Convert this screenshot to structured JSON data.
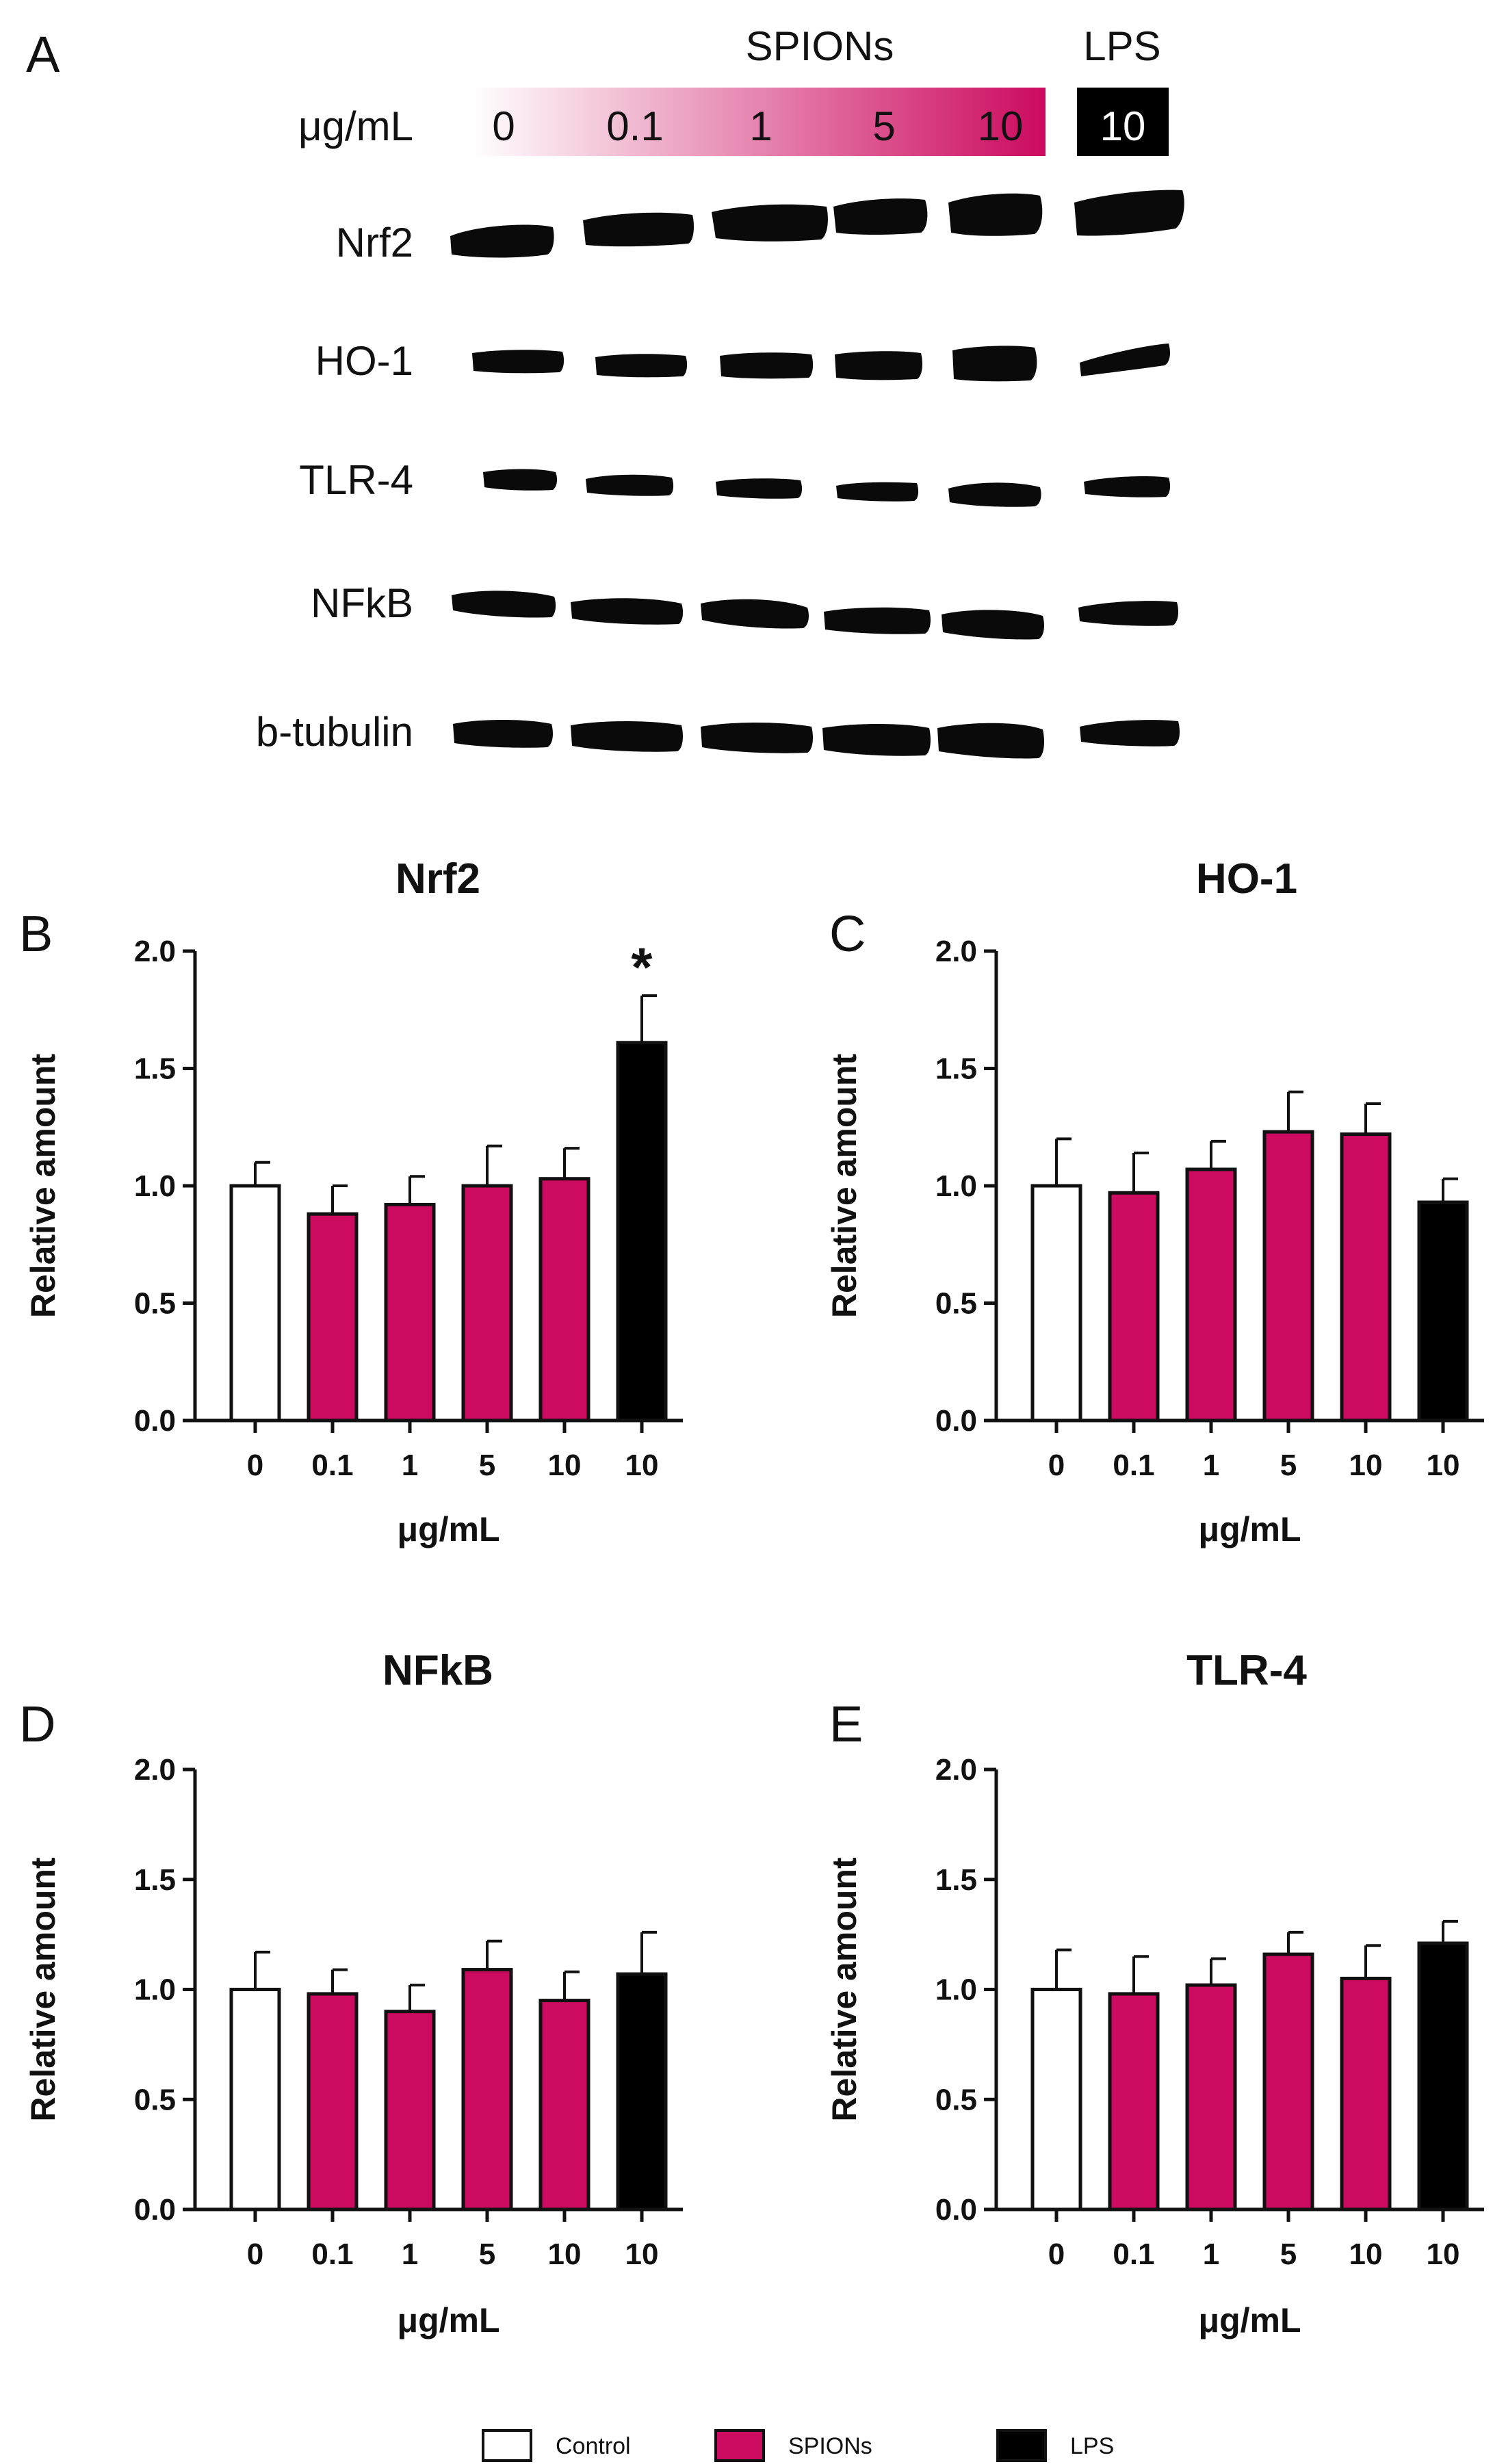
{
  "panel_a": {
    "letter": "A",
    "spions_label": "SPIONs",
    "lps_label": "LPS",
    "unit_label": "μg/mL",
    "spion_doses": [
      "0",
      "0.1",
      "1",
      "5",
      "10"
    ],
    "lps_dose": "10",
    "proteins": [
      "Nrf2",
      "HO-1",
      "TLR-4",
      "NFkB",
      "b-tubulin"
    ],
    "colors": {
      "spions": "#cc0a5f",
      "lps": "#000000"
    }
  },
  "legend": {
    "items": [
      {
        "label": "Control",
        "color": "#ffffff"
      },
      {
        "label": "SPIONs",
        "color": "#cc0a5f"
      },
      {
        "label": "LPS",
        "color": "#000000"
      }
    ]
  },
  "chart_data": [
    {
      "letter": "B",
      "type": "bar",
      "title": "Nrf2",
      "xlabel": "μg/mL",
      "ylabel": "Relative amount",
      "categories": [
        "0",
        "0.1",
        "1",
        "5",
        "10",
        "10"
      ],
      "values": [
        1.0,
        0.88,
        0.92,
        1.0,
        1.03,
        1.61
      ],
      "errors": [
        0.1,
        0.12,
        0.12,
        0.17,
        0.13,
        0.2
      ],
      "groups": [
        "Control",
        "SPIONs",
        "SPIONs",
        "SPIONs",
        "SPIONs",
        "LPS"
      ],
      "annotations": [
        "",
        "",
        "",
        "",
        "",
        "*"
      ],
      "ylim": [
        0,
        2.0
      ],
      "yticks": [
        "0.0",
        "0.5",
        "1.0",
        "1.5",
        "2.0"
      ]
    },
    {
      "letter": "C",
      "type": "bar",
      "title": "HO-1",
      "xlabel": "μg/mL",
      "ylabel": "Relative amount",
      "categories": [
        "0",
        "0.1",
        "1",
        "5",
        "10",
        "10"
      ],
      "values": [
        1.0,
        0.97,
        1.07,
        1.23,
        1.22,
        0.93
      ],
      "errors": [
        0.2,
        0.17,
        0.12,
        0.17,
        0.13,
        0.1
      ],
      "groups": [
        "Control",
        "SPIONs",
        "SPIONs",
        "SPIONs",
        "SPIONs",
        "LPS"
      ],
      "annotations": [
        "",
        "",
        "",
        "",
        "",
        ""
      ],
      "ylim": [
        0,
        2.0
      ],
      "yticks": [
        "0.0",
        "0.5",
        "1.0",
        "1.5",
        "2.0"
      ]
    },
    {
      "letter": "D",
      "type": "bar",
      "title": "NFkB",
      "xlabel": "μg/mL",
      "ylabel": "Relative amount",
      "categories": [
        "0",
        "0.1",
        "1",
        "5",
        "10",
        "10"
      ],
      "values": [
        1.0,
        0.98,
        0.9,
        1.09,
        0.95,
        1.07
      ],
      "errors": [
        0.17,
        0.11,
        0.12,
        0.13,
        0.13,
        0.19
      ],
      "groups": [
        "Control",
        "SPIONs",
        "SPIONs",
        "SPIONs",
        "SPIONs",
        "LPS"
      ],
      "annotations": [
        "",
        "",
        "",
        "",
        "",
        ""
      ],
      "ylim": [
        0,
        2.0
      ],
      "yticks": [
        "0.0",
        "0.5",
        "1.0",
        "1.5",
        "2.0"
      ]
    },
    {
      "letter": "E",
      "type": "bar",
      "title": "TLR-4",
      "xlabel": "μg/mL",
      "ylabel": "Relative amount",
      "categories": [
        "0",
        "0.1",
        "1",
        "5",
        "10",
        "10"
      ],
      "values": [
        1.0,
        0.98,
        1.02,
        1.16,
        1.05,
        1.21
      ],
      "errors": [
        0.18,
        0.17,
        0.12,
        0.1,
        0.15,
        0.1
      ],
      "groups": [
        "Control",
        "SPIONs",
        "SPIONs",
        "SPIONs",
        "SPIONs",
        "LPS"
      ],
      "annotations": [
        "",
        "",
        "",
        "",
        "",
        ""
      ],
      "ylim": [
        0,
        2.0
      ],
      "yticks": [
        "0.0",
        "0.5",
        "1.0",
        "1.5",
        "2.0"
      ]
    }
  ]
}
